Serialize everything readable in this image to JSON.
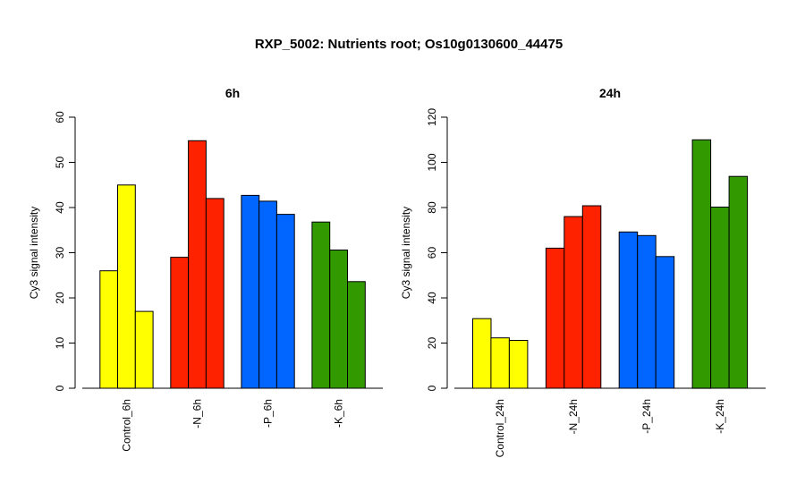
{
  "figure": {
    "title": "RXP_5002: Nutrients root; Os10g0130600_44475"
  },
  "chart_data": [
    {
      "type": "bar",
      "title": "6h",
      "ylabel": "Cy3 signal intensity",
      "ylim": [
        0,
        60
      ],
      "yticks": [
        0,
        10,
        20,
        30,
        40,
        50,
        60
      ],
      "grid": false,
      "groups": [
        {
          "label": "Control_6h",
          "color": "#ffff00",
          "values": [
            26,
            45,
            17
          ]
        },
        {
          "label": "-N_6h",
          "color": "#ff2200",
          "values": [
            29,
            54.8,
            42
          ]
        },
        {
          "label": "-P_6h",
          "color": "#0066ff",
          "values": [
            42.7,
            41.4,
            38.5
          ]
        },
        {
          "label": "-K_6h",
          "color": "#339900",
          "values": [
            36.8,
            30.6,
            23.6
          ]
        }
      ]
    },
    {
      "type": "bar",
      "title": "24h",
      "ylabel": "Cy3 signal intensity",
      "ylim": [
        0,
        120
      ],
      "yticks": [
        0,
        20,
        40,
        60,
        80,
        100,
        120
      ],
      "grid": false,
      "groups": [
        {
          "label": "Control_24h",
          "color": "#ffff00",
          "values": [
            30.8,
            22.3,
            21.2
          ]
        },
        {
          "label": "-N_24h",
          "color": "#ff2200",
          "values": [
            62,
            76,
            80.8
          ]
        },
        {
          "label": "-P_24h",
          "color": "#0066ff",
          "values": [
            69.2,
            67.6,
            58.3
          ]
        },
        {
          "label": "-K_24h",
          "color": "#339900",
          "values": [
            110,
            80.2,
            93.8
          ]
        }
      ]
    }
  ]
}
